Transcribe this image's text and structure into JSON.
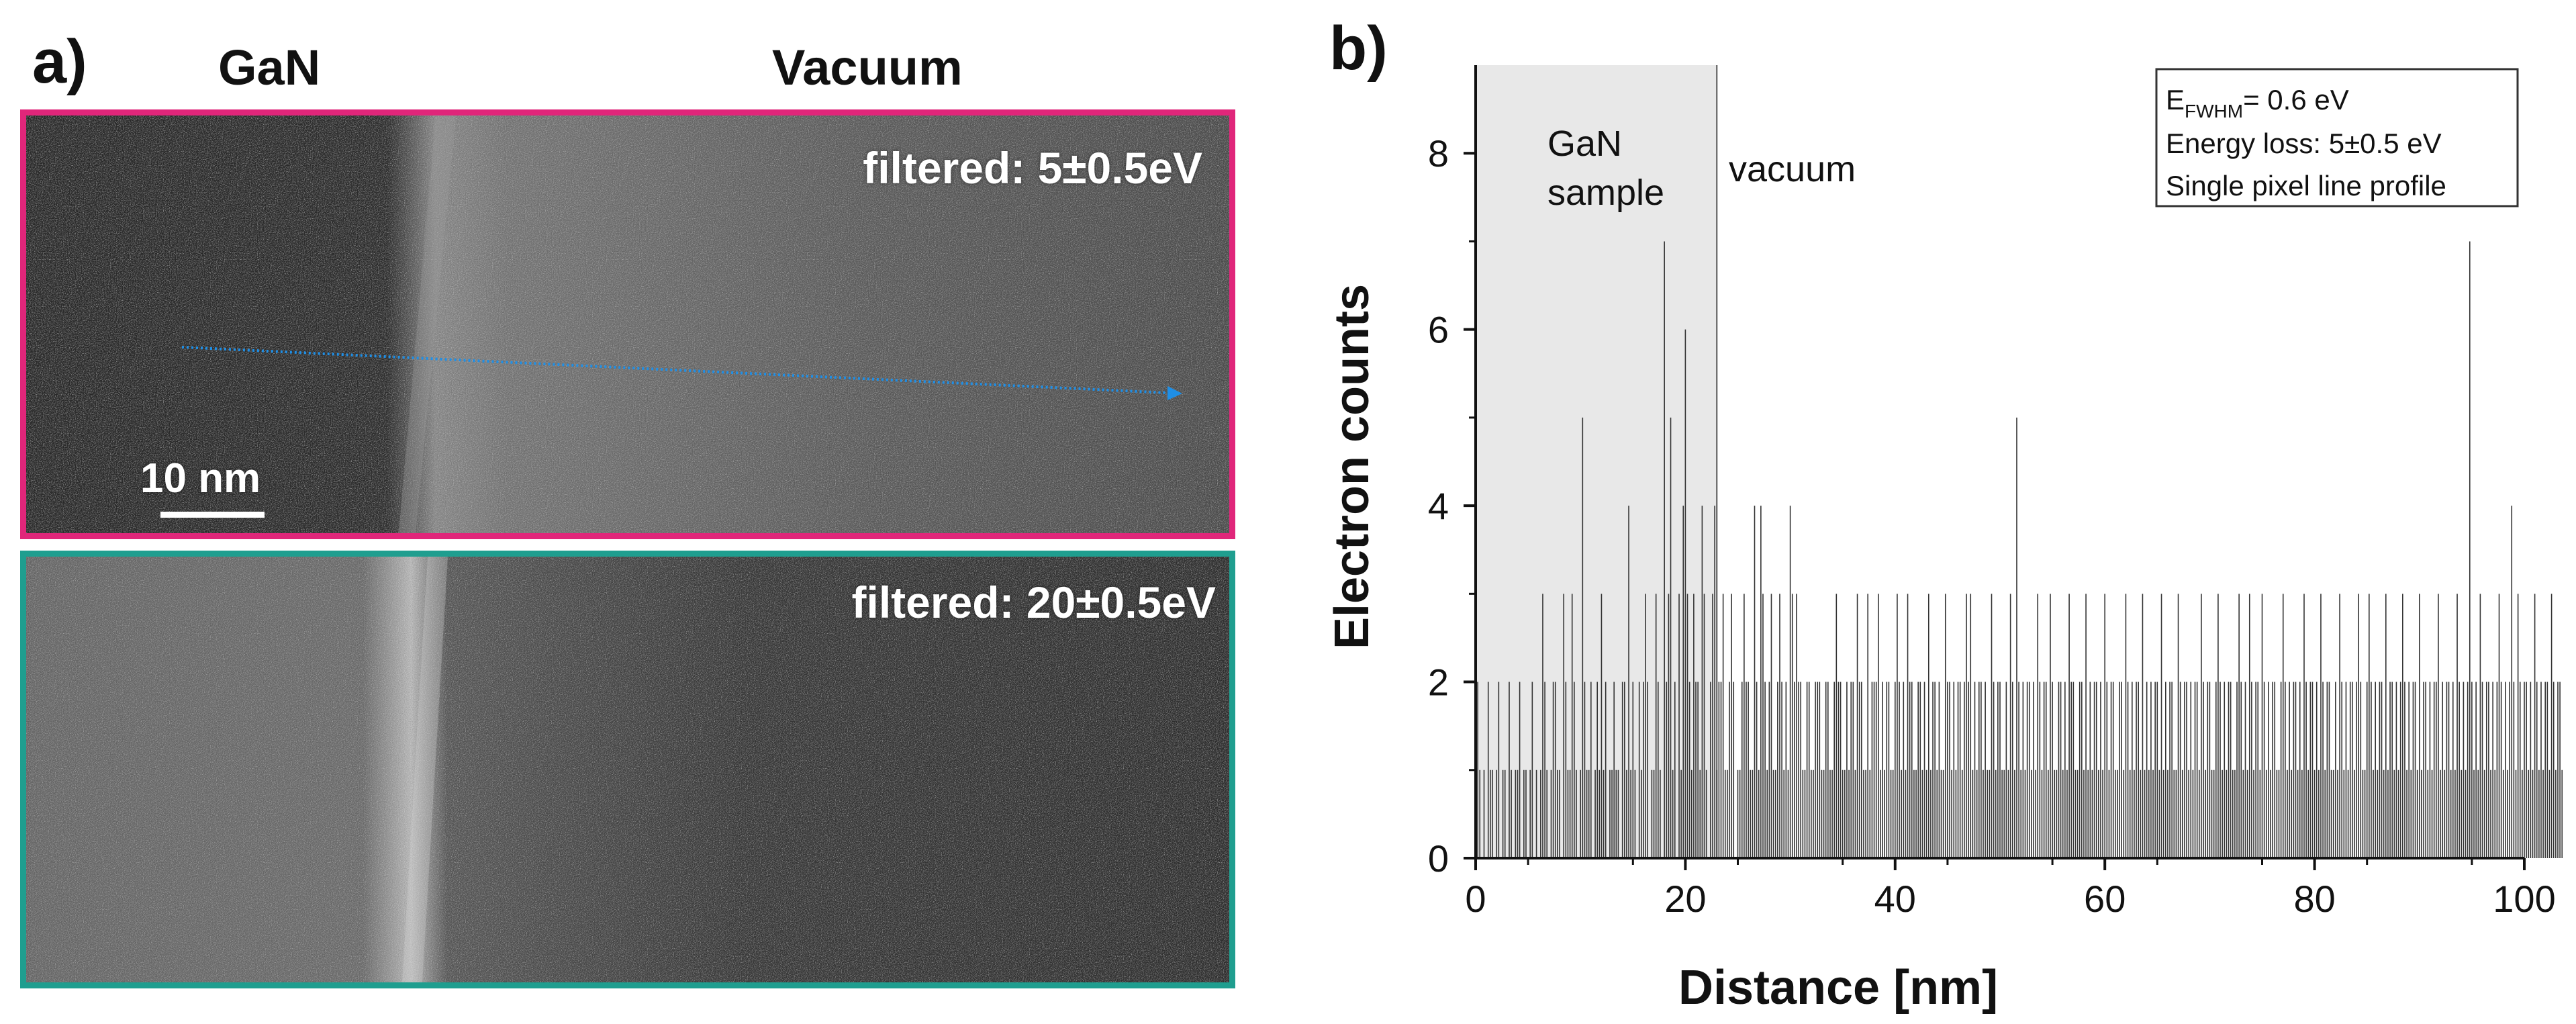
{
  "panel_a": {
    "label": "a)",
    "header_left": "GaN",
    "header_right": "Vacuum",
    "top_image": {
      "filter_label": "filtered: 5±0.5eV",
      "frame_color": "#e0267a",
      "scale_bar_label": "10 nm",
      "arrow_color": "#1f8fe6"
    },
    "bottom_image": {
      "filter_label": "filtered:  20±0.5eV",
      "frame_color": "#1f9e8f"
    }
  },
  "panel_b": {
    "label": "b)",
    "region_gan_line1": "GaN",
    "region_gan_line2": "sample",
    "region_vacuum": "vacuum",
    "legend": {
      "line1_main": "E",
      "line1_sub": "FWHM",
      "line1_rest": "= 0.6 eV",
      "line2": "Energy loss: 5±0.5 eV",
      "line3": "Single pixel line profile"
    },
    "shade_color": "#e8e8e8",
    "bar_color": "#333333"
  },
  "chart_data": {
    "type": "bar",
    "title": "",
    "xlabel": "Distance [nm]",
    "ylabel": "Electron counts",
    "xlim": [
      0,
      100
    ],
    "ylim": [
      0,
      9
    ],
    "xticks": [
      0,
      20,
      40,
      60,
      80,
      100
    ],
    "yticks": [
      0,
      2,
      4,
      6,
      8
    ],
    "shaded_region": {
      "x_start": 0,
      "x_end": 23,
      "label": "GaN sample"
    },
    "x_step_nm": 0.2,
    "x_start_nm": 0.2,
    "series": [
      {
        "name": "Single pixel line profile",
        "values": [
          2,
          1,
          0,
          1,
          0,
          2,
          1,
          1,
          0,
          1,
          2,
          0,
          1,
          1,
          0,
          2,
          1,
          0,
          1,
          1,
          2,
          0,
          1,
          1,
          0,
          1,
          2,
          0,
          1,
          0,
          1,
          3,
          2,
          1,
          0,
          1,
          2,
          2,
          1,
          1,
          0,
          3,
          2,
          1,
          1,
          3,
          2,
          1,
          0,
          1,
          5,
          2,
          1,
          1,
          2,
          0,
          1,
          2,
          1,
          3,
          1,
          2,
          0,
          1,
          1,
          2,
          1,
          1,
          0,
          2,
          2,
          1,
          4,
          1,
          2,
          1,
          0,
          2,
          1,
          2,
          3,
          2,
          0,
          1,
          1,
          3,
          2,
          1,
          0,
          7,
          2,
          3,
          5,
          1,
          2,
          0,
          3,
          1,
          4,
          6,
          3,
          2,
          1,
          3,
          2,
          2,
          1,
          4,
          3,
          1,
          0,
          2,
          3,
          4,
          1,
          2,
          2,
          3,
          1,
          1,
          2,
          3,
          2,
          0,
          1,
          1,
          2,
          3,
          2,
          2,
          1,
          1,
          4,
          2,
          1,
          4,
          3,
          2,
          1,
          2,
          3,
          1,
          1,
          2,
          3,
          2,
          1,
          2,
          1,
          4,
          3,
          2,
          3,
          2,
          2,
          1,
          1,
          2,
          2,
          1,
          1,
          2,
          2,
          2,
          1,
          1,
          2,
          2,
          1,
          1,
          2,
          3,
          2,
          2,
          1,
          1,
          2,
          1,
          2,
          2,
          1,
          3,
          2,
          2,
          1,
          1,
          3,
          1,
          2,
          2,
          2,
          3,
          1,
          2,
          1,
          2,
          2,
          1,
          1,
          2,
          3,
          2,
          1,
          2,
          1,
          3,
          2,
          2,
          1,
          1,
          2,
          2,
          1,
          2,
          1,
          3,
          1,
          2,
          2,
          1,
          2,
          1,
          1,
          3,
          2,
          2,
          1,
          2,
          1,
          2,
          2,
          1,
          2,
          3,
          2,
          3,
          1,
          2,
          1,
          2,
          2,
          1,
          2,
          1,
          1,
          3,
          2,
          1,
          2,
          2,
          1,
          1,
          2,
          1,
          3,
          2,
          1,
          5,
          2,
          1,
          2,
          1,
          2,
          2,
          1,
          2,
          1,
          3,
          2,
          1,
          2,
          2,
          1,
          3,
          2,
          1,
          1,
          2,
          2,
          1,
          2,
          1,
          3,
          2,
          2,
          1,
          1,
          2,
          2,
          1,
          3,
          1,
          2,
          1,
          2,
          2,
          1,
          2,
          1,
          3,
          2,
          1,
          2,
          2,
          1,
          1,
          2,
          2,
          1,
          3,
          2,
          1,
          2,
          1,
          2,
          2,
          1,
          3,
          1,
          2,
          1,
          2,
          1,
          2,
          2,
          1,
          3,
          1,
          2,
          1,
          2,
          2,
          1,
          1,
          3,
          2,
          1,
          2,
          2,
          1,
          2,
          1,
          2,
          2,
          1,
          3,
          2,
          1,
          2,
          2,
          1,
          1,
          2,
          3,
          2,
          1,
          2,
          1,
          2,
          2,
          1,
          1,
          2,
          3,
          2,
          1,
          2,
          1,
          3,
          2,
          1,
          2,
          2,
          1,
          3,
          2,
          1,
          2,
          1,
          2,
          2,
          1,
          1,
          2,
          3,
          2,
          1,
          2,
          1,
          2,
          2,
          1,
          2,
          1,
          3,
          2,
          1,
          2,
          2,
          1,
          2,
          1,
          3,
          2,
          1,
          2,
          2,
          1,
          1,
          2,
          1,
          3,
          2,
          1,
          2,
          1,
          2,
          2,
          1,
          2,
          3,
          2,
          1,
          1,
          2,
          3,
          2,
          1,
          2,
          1,
          2,
          2,
          1,
          3,
          1,
          2,
          2,
          1,
          2,
          1,
          2,
          3,
          2,
          1,
          2,
          1,
          2,
          2,
          1,
          3,
          1,
          2,
          2,
          1,
          2,
          1,
          2,
          2,
          3,
          1,
          2,
          1,
          2,
          2,
          1,
          2,
          1,
          3,
          2,
          1,
          2,
          1,
          2,
          7,
          2,
          1,
          2,
          1,
          3,
          2,
          1,
          2,
          2,
          1,
          2,
          1,
          2,
          3,
          2,
          1,
          2,
          1,
          2,
          4,
          2,
          1,
          3,
          2,
          1,
          2,
          2,
          1,
          2,
          1,
          3,
          2,
          1,
          2,
          1,
          2,
          2,
          1,
          3,
          2,
          1,
          2,
          2,
          1
        ]
      }
    ],
    "legend": [
      "E_FWHM= 0.6 eV",
      "Energy loss: 5±0.5 eV",
      "Single pixel line profile"
    ],
    "legend_position": "top-right",
    "grid": false
  }
}
